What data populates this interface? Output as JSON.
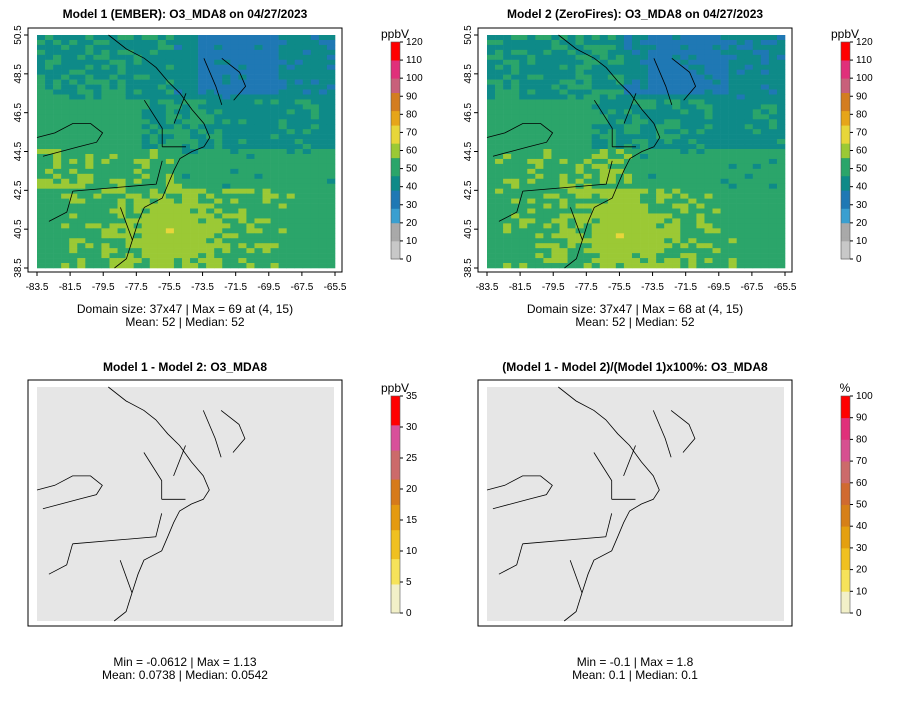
{
  "panels": [
    {
      "title": "Model 1 (EMBER): O3_MDA8 on 04/27/2023",
      "stats_line1": "Domain size: 37x47 | Max = 69 at (4, 15)",
      "stats_line2": "Mean: 52 |  Median: 52",
      "legend_unit": "ppbV",
      "legend_ticks": [
        "0",
        "10",
        "20",
        "30",
        "40",
        "50",
        "60",
        "70",
        "80",
        "90",
        "100",
        "110",
        "120"
      ],
      "field": "ozone",
      "x_ticks": [
        "-83.5",
        "-81.5",
        "-79.5",
        "-77.5",
        "-75.5",
        "-73.5",
        "-71.5",
        "-69.5",
        "-67.5",
        "-65.5"
      ],
      "y_ticks": [
        "38.5",
        "40.5",
        "42.5",
        "44.5",
        "46.5",
        "48.5",
        "50.5"
      ]
    },
    {
      "title": "Model 2 (ZeroFires): O3_MDA8 on 04/27/2023",
      "stats_line1": "Domain size: 37x47 | Max = 68 at (4, 15)",
      "stats_line2": "Mean: 52 |  Median: 52",
      "legend_unit": "ppbV",
      "legend_ticks": [
        "0",
        "10",
        "20",
        "30",
        "40",
        "50",
        "60",
        "70",
        "80",
        "90",
        "100",
        "110",
        "120"
      ],
      "field": "ozone",
      "x_ticks": [
        "-83.5",
        "-81.5",
        "-79.5",
        "-77.5",
        "-75.5",
        "-73.5",
        "-71.5",
        "-69.5",
        "-67.5",
        "-65.5"
      ],
      "y_ticks": [
        "38.5",
        "40.5",
        "42.5",
        "44.5",
        "46.5",
        "48.5",
        "50.5"
      ]
    },
    {
      "title": "Model 1 - Model 2: O3_MDA8",
      "stats_line1": "Min = -0.0612 | Max = 1.13",
      "stats_line2": "Mean: 0.0738 |  Median: 0.0542",
      "legend_unit": "ppbV",
      "legend_ticks": [
        "0",
        "5",
        "10",
        "15",
        "20",
        "25",
        "30",
        "35"
      ],
      "field": "flat",
      "x_ticks": [],
      "y_ticks": []
    },
    {
      "title": "(Model 1 - Model 2)/(Model 1)x100%: O3_MDA8",
      "stats_line1": "Min = -0.1 | Max = 1.8",
      "stats_line2": "Mean: 0.1 |  Median: 0.1",
      "legend_unit": "%",
      "legend_ticks": [
        "0",
        "10",
        "20",
        "30",
        "40",
        "50",
        "60",
        "70",
        "80",
        "90",
        "100"
      ],
      "field": "flat",
      "x_ticks": [],
      "y_ticks": []
    }
  ],
  "colors": {
    "ozone_scale": [
      "#c8c8c8",
      "#a9a9a9",
      "#3a9fd0",
      "#1f78b4",
      "#0e8a88",
      "#2ba56a",
      "#9bc935",
      "#e8d63a",
      "#e6a519",
      "#d37d20",
      "#c8607a",
      "#e0307a",
      "#ff0000"
    ],
    "diff_scale": [
      "#f2f0c8",
      "#f6e35a",
      "#f0c020",
      "#e49a10",
      "#d67a1a",
      "#cc6a6a",
      "#d8509a",
      "#ff0000"
    ],
    "flat_fill": "#e6e6e6"
  }
}
